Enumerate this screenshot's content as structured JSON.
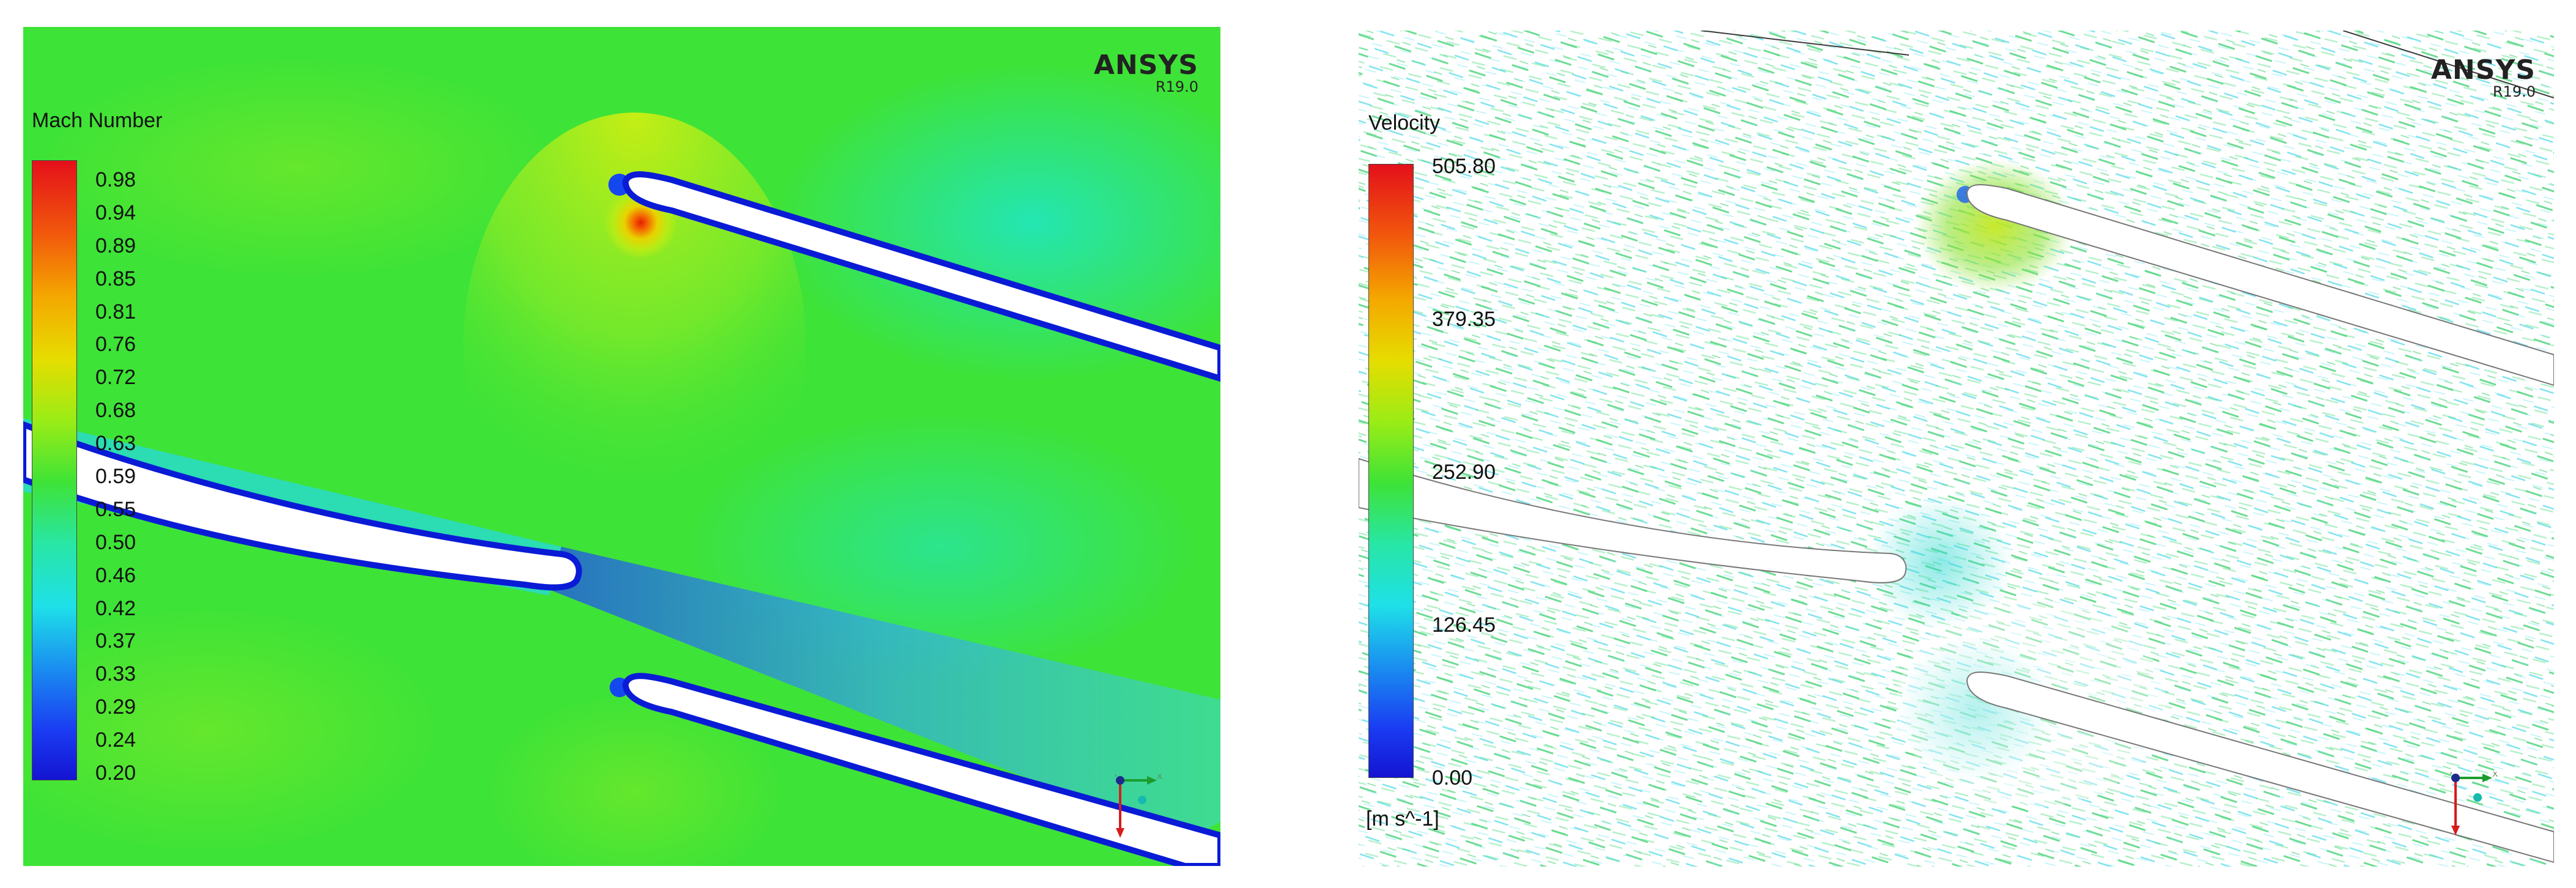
{
  "panels": [
    {
      "id": "mach",
      "logo": {
        "brand": "ANSYS",
        "version": "R19.0"
      },
      "legend": {
        "title": "Mach Number",
        "unit": "",
        "ticks": [
          "0.98",
          "0.94",
          "0.89",
          "0.85",
          "0.81",
          "0.76",
          "0.72",
          "0.68",
          "0.63",
          "0.59",
          "0.55",
          "0.50",
          "0.46",
          "0.42",
          "0.37",
          "0.33",
          "0.29",
          "0.24",
          "0.20"
        ]
      },
      "axis_labels": {
        "y": "Y",
        "x": "X"
      }
    },
    {
      "id": "velocity",
      "logo": {
        "brand": "ANSYS",
        "version": "R19.0"
      },
      "legend": {
        "title": "Velocity",
        "unit": "[m s^-1]",
        "ticks": [
          "505.80",
          "379.35",
          "252.90",
          "126.45",
          "0.00"
        ]
      },
      "axis_labels": {
        "y": "Y",
        "x": "X"
      }
    }
  ],
  "colors": {
    "field_green": "#39e23a",
    "field_cyan": "#1fe6c8",
    "blade_edge": "#0a1bd6",
    "vector_green": "#3cd070",
    "vector_cyan": "#49d8e8"
  }
}
